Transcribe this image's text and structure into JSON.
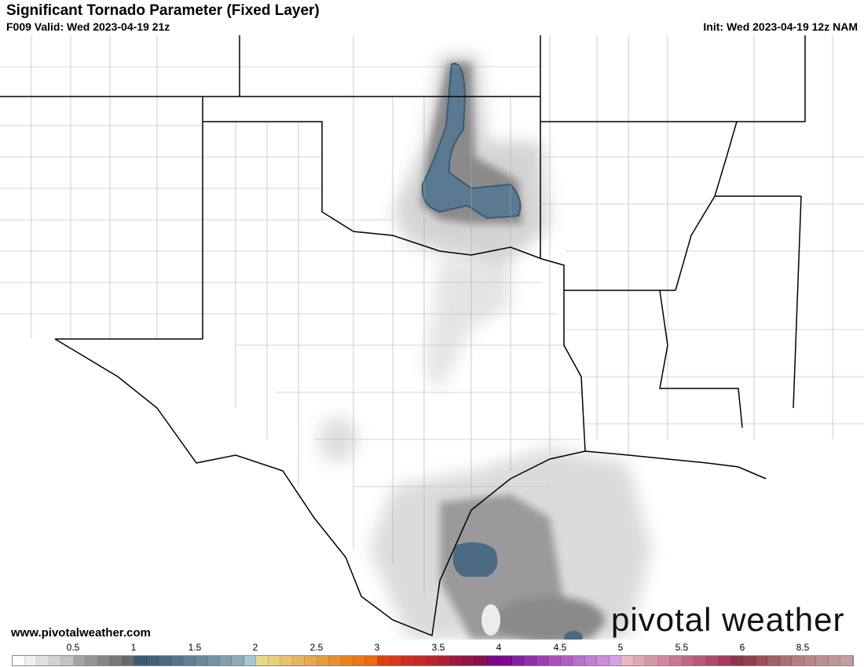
{
  "header": {
    "title": "Significant Tornado Parameter (Fixed Layer)",
    "valid": "F009 Valid: Wed 2023-04-19 21z",
    "init": "Init: Wed 2023-04-19 12z NAM"
  },
  "footer": {
    "website": "www.pivotalweather.com",
    "brand": "pivotal weather"
  },
  "colorbar": {
    "tick_labels": [
      "0.5",
      "1",
      "1.5",
      "2",
      "2.5",
      "3",
      "3.5",
      "4",
      "4.5",
      "5",
      "5.5",
      "6",
      "8.5"
    ],
    "colors": [
      "#ffffff",
      "#f0f0f0",
      "#e1e1e1",
      "#d2d2d2",
      "#c3c3c3",
      "#a5a5a5",
      "#969696",
      "#878787",
      "#787878",
      "#696969",
      "#3a5a75",
      "#435f78",
      "#4c6b82",
      "#56748a",
      "#5f7f94",
      "#6a889c",
      "#7593a4",
      "#819fae",
      "#8eabb6",
      "#a6c8d0",
      "#e8d98a",
      "#e8cf80",
      "#e8c070",
      "#e8b460",
      "#e8a850",
      "#e89c40",
      "#e89030",
      "#e88420",
      "#e87818",
      "#e86c10",
      "#dc4015",
      "#d83820",
      "#cc3025",
      "#c52a2a",
      "#b82530",
      "#aa2035",
      "#9c1a40",
      "#901548",
      "#85104f",
      "#7a0a8a",
      "#7a0a90",
      "#8420a0",
      "#9030a8",
      "#9c40b0",
      "#a850b8",
      "#b060c0",
      "#b870c8",
      "#c080d0",
      "#c890d8",
      "#d8a0e8",
      "#e8b8c0",
      "#e0a8b0",
      "#d898a8",
      "#d088a0",
      "#c87890",
      "#c06880",
      "#b85878",
      "#b04870",
      "#a83860",
      "#8a3848",
      "#904050",
      "#985058",
      "#a06068",
      "#a87070",
      "#b08080",
      "#b88888",
      "#bc9090",
      "#c09898",
      "#c4a0a0"
    ]
  },
  "colors": {
    "state_border": "#000000",
    "county_border": "#999999",
    "stp_low": "#c8c8c8",
    "stp_mid": "#8a8a8a",
    "stp_high": "#4c6b82"
  }
}
